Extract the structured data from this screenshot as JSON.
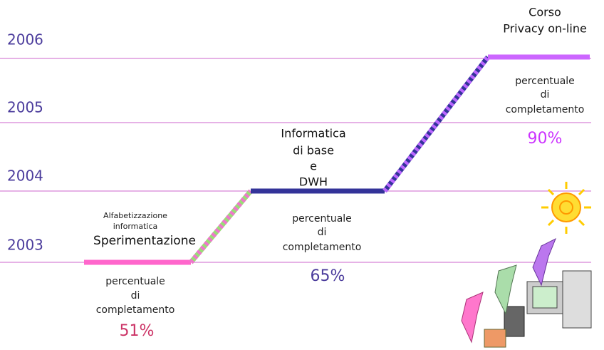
{
  "years": [
    "2006",
    "2005",
    "2004",
    "2003"
  ],
  "stages": [
    {
      "subtitle": [
        "Alfabetizzazione",
        "informatica"
      ],
      "label": [
        "Sperimentazione"
      ],
      "caption": [
        "percentuale",
        "di",
        "completamento"
      ],
      "percent": "51%"
    },
    {
      "label": [
        "Informatica",
        "di base",
        "e",
        "DWH"
      ],
      "caption": [
        "percentuale",
        "di",
        "completamento"
      ],
      "percent": "65%"
    },
    {
      "label": [
        "Corso",
        "Privacy on-line"
      ],
      "caption": [
        "percentuale",
        "di",
        "completamento"
      ],
      "percent": "90%"
    }
  ]
}
